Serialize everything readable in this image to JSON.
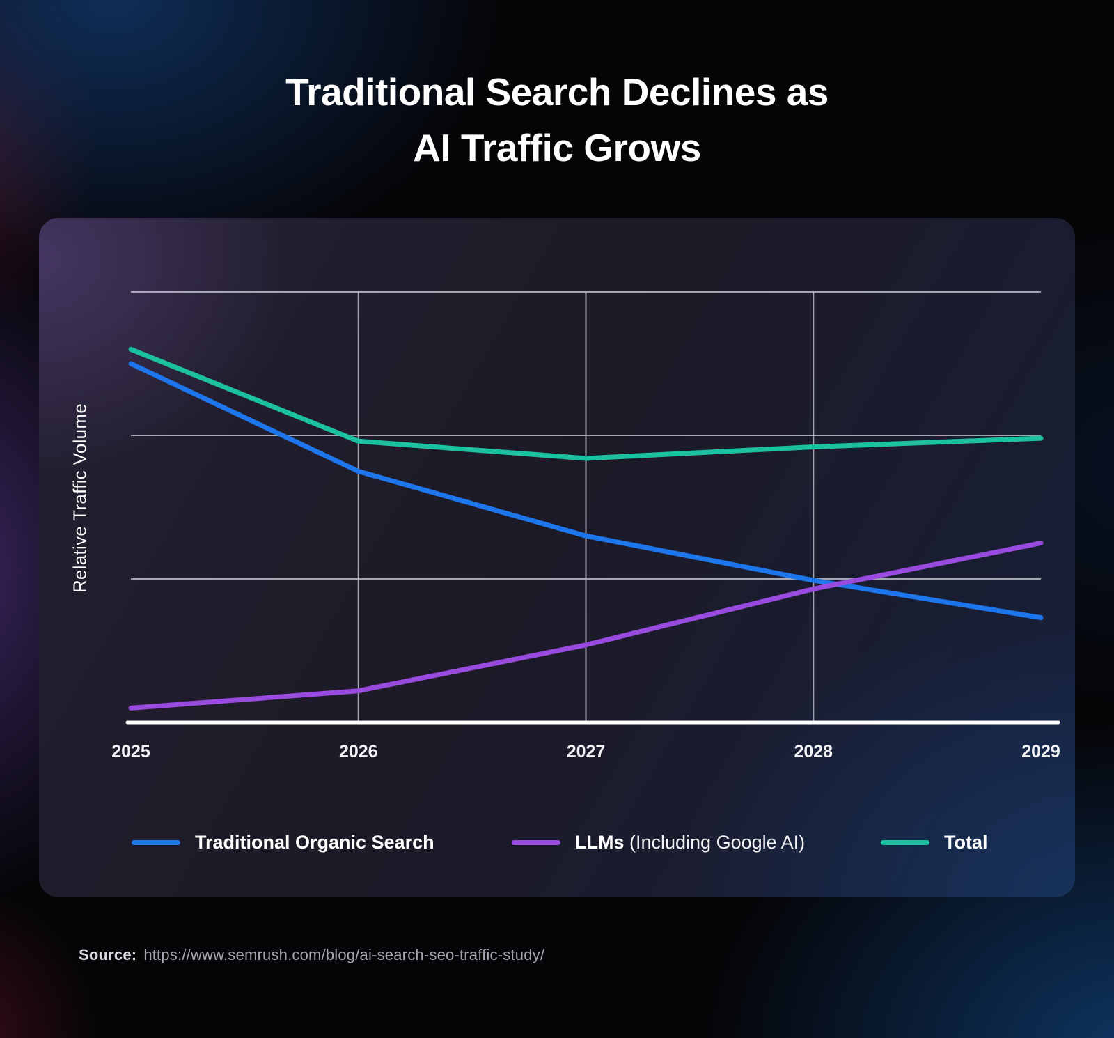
{
  "title": {
    "line1": "Traditional Search Declines as",
    "line2": "AI Traffic Grows"
  },
  "chart_data": {
    "type": "line",
    "title": "Traditional Search Declines as AI Traffic Grows",
    "ylabel": "Relative Traffic Volume",
    "xlabel": "",
    "categories": [
      "2025",
      "2026",
      "2027",
      "2028",
      "2029"
    ],
    "ylim": [
      0,
      3.05
    ],
    "grid": {
      "horizontal_values": [
        1,
        2,
        3
      ],
      "vertical_categories": [
        "2026",
        "2027",
        "2028"
      ]
    },
    "legend_position": "bottom",
    "series": [
      {
        "name": "Traditional Organic Search",
        "color": "#1E76EC",
        "values": [
          2.5,
          1.75,
          1.3,
          0.99,
          0.73
        ]
      },
      {
        "name": "LLMs (Including Google AI)",
        "color": "#9A4BDF",
        "values": [
          0.1,
          0.22,
          0.54,
          0.93,
          1.25
        ]
      },
      {
        "name": "Total",
        "color": "#1CC29F",
        "values": [
          2.6,
          1.96,
          1.84,
          1.92,
          1.98
        ]
      }
    ]
  },
  "legend": {
    "items": [
      {
        "label_bold": "Traditional Organic Search",
        "label_rest": "",
        "color": "#1E76EC"
      },
      {
        "label_bold": "LLMs",
        "label_rest": " (Including Google AI)",
        "color": "#9A4BDF"
      },
      {
        "label_bold": "Total",
        "label_rest": "",
        "color": "#1CC29F"
      }
    ]
  },
  "source": {
    "label": "Source:",
    "url": "https://www.semrush.com/blog/ai-search-seo-traffic-study/"
  }
}
